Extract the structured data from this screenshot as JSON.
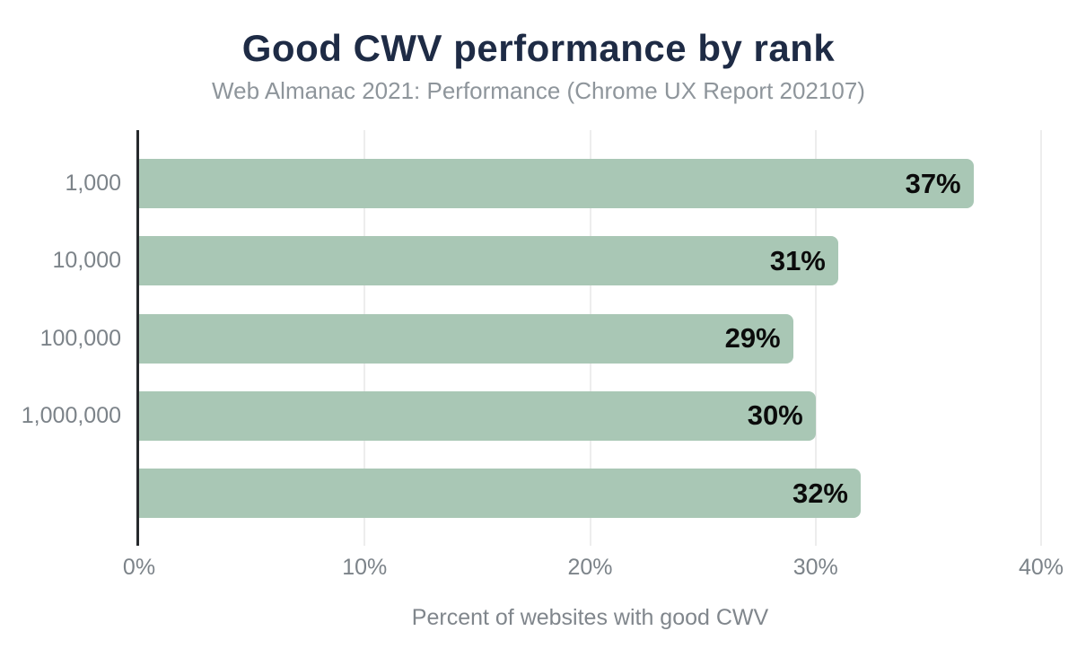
{
  "chart_data": {
    "type": "bar",
    "orientation": "horizontal",
    "title": "Good CWV performance by rank",
    "subtitle": "Web Almanac 2021: Performance (Chrome UX Report 202107)",
    "xlabel": "Percent of websites with good CWV",
    "ylabel": "",
    "categories": [
      "1,000",
      "10,000",
      "100,000",
      "1,000,000",
      ""
    ],
    "values": [
      37,
      31,
      29,
      30,
      32
    ],
    "value_labels": [
      "37%",
      "31%",
      "29%",
      "30%",
      "32%"
    ],
    "xlim": [
      0,
      40
    ],
    "x_ticks": [
      {
        "value": 0,
        "label": "0%"
      },
      {
        "value": 10,
        "label": "10%"
      },
      {
        "value": 20,
        "label": "20%"
      },
      {
        "value": 30,
        "label": "30%"
      },
      {
        "value": 40,
        "label": "40%"
      }
    ],
    "grid": "vertical-gridlines-at-ticks",
    "legend": "none",
    "colors": {
      "bar": "#a9c7b5",
      "title": "#1e2b45",
      "subtitle": "#8e959b",
      "axis_line": "#26292c",
      "gridline": "#ededed",
      "tick_label": "#7c8389",
      "y_label": "#7c8389",
      "value_label": "#0b0b0b",
      "xlabel": "#80868c",
      "background": "#ffffff"
    }
  }
}
